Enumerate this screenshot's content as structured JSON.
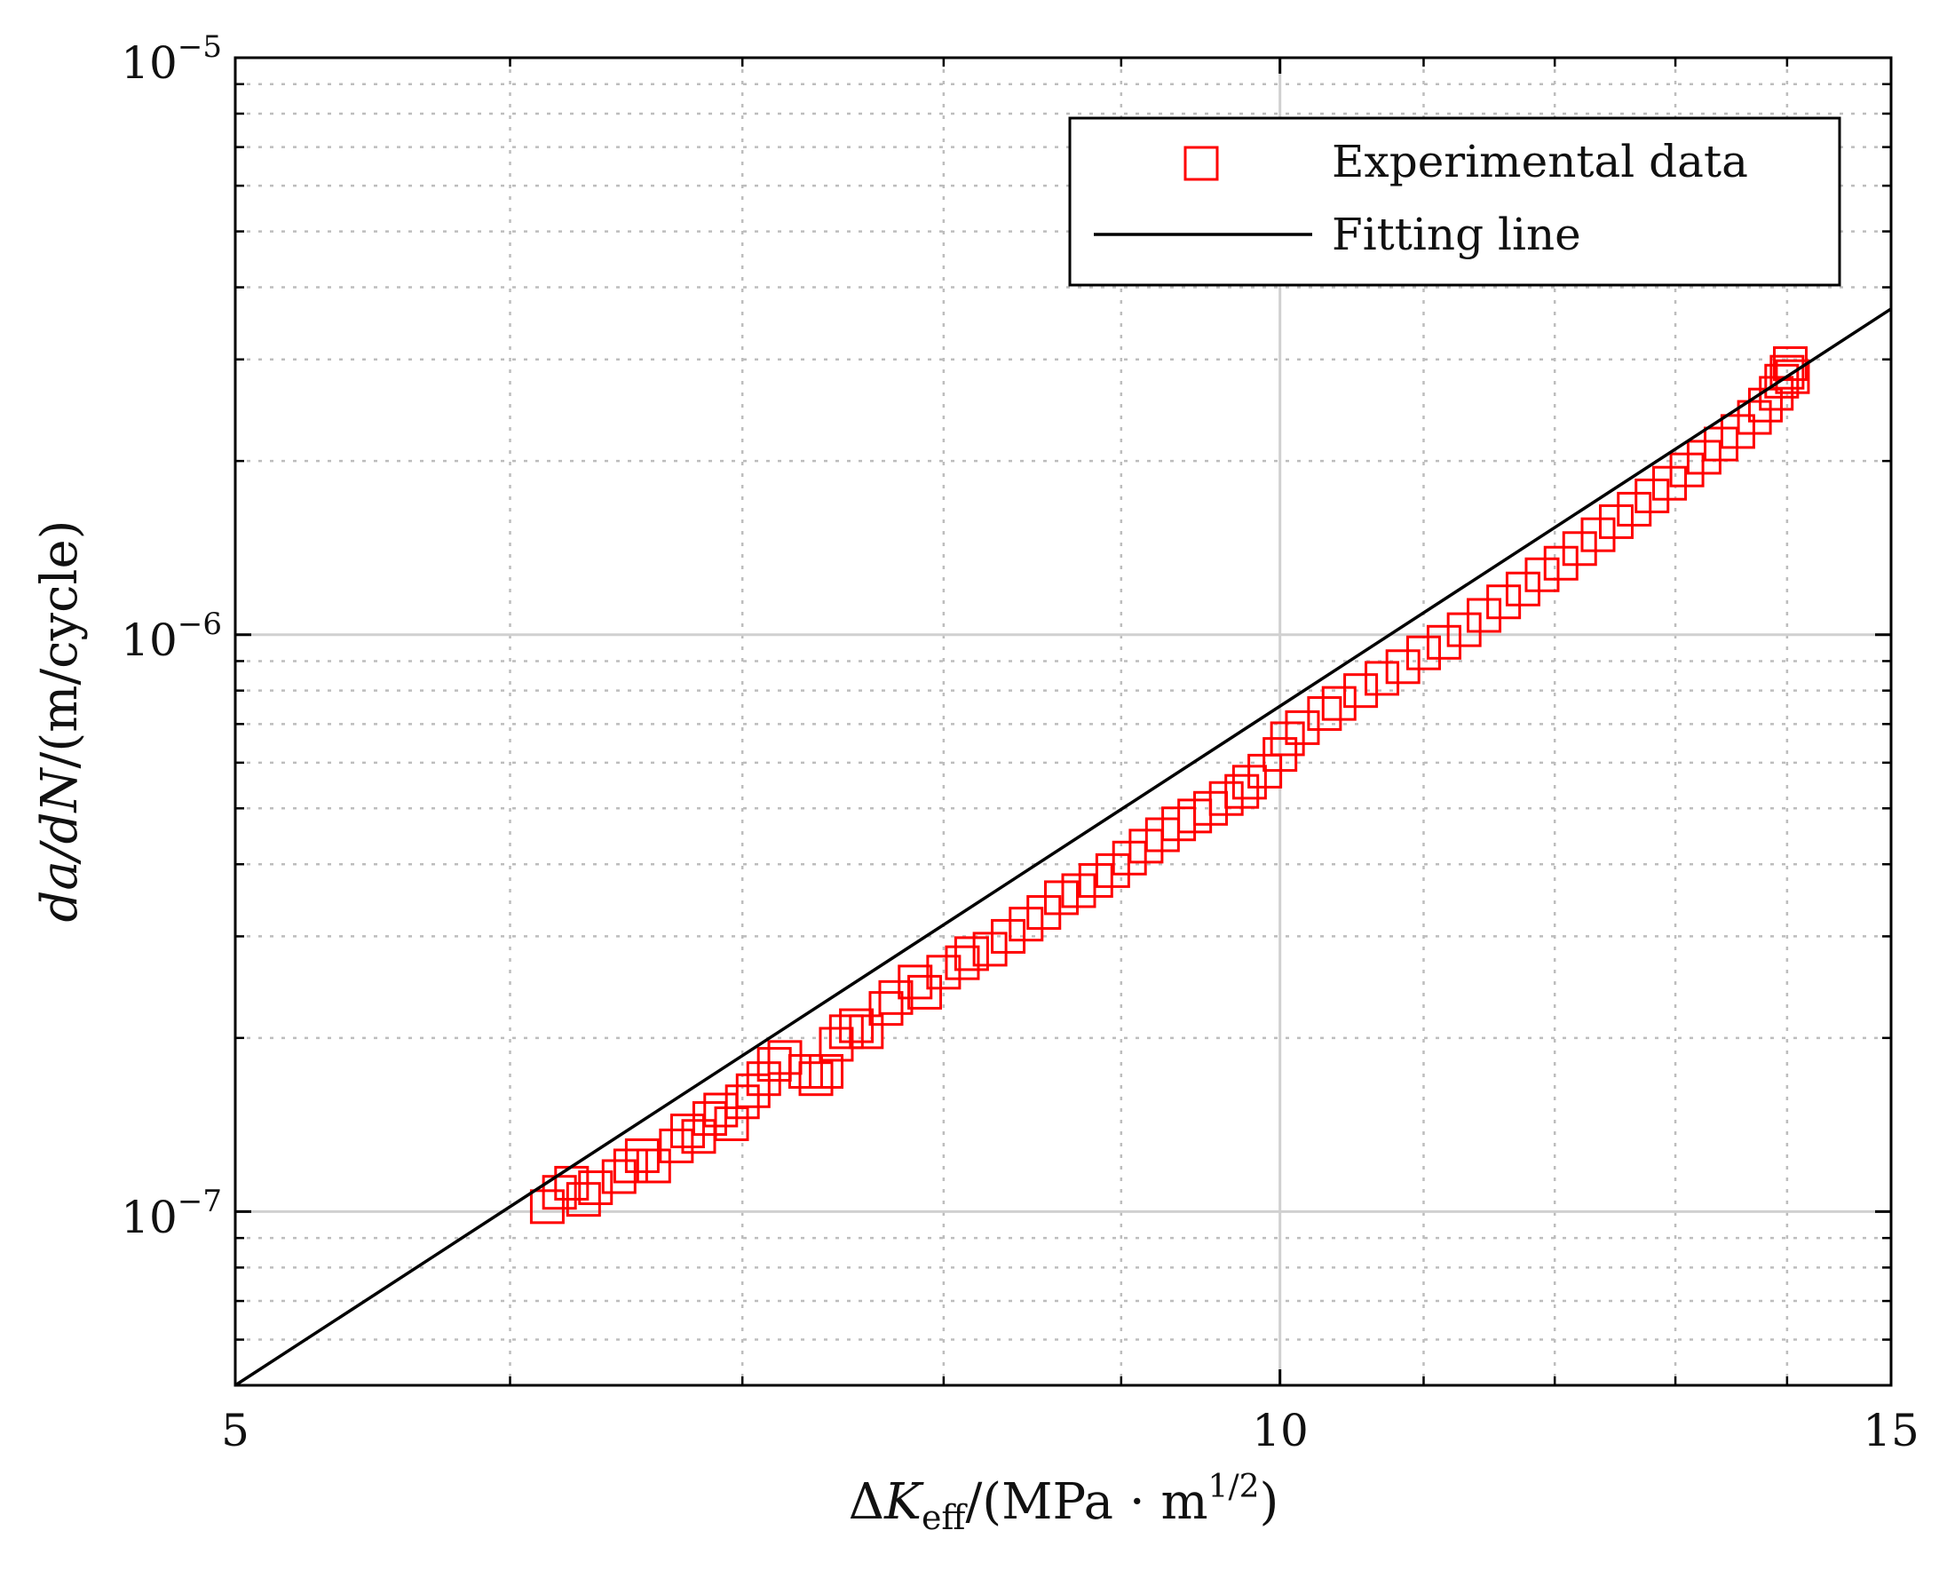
{
  "chart_data": {
    "type": "scatter",
    "scale": {
      "x": "log",
      "y": "log"
    },
    "xlim": [
      5,
      15
    ],
    "ylim": [
      5e-08,
      1e-05
    ],
    "grid": true,
    "xticks": [
      {
        "value": 5,
        "label": "5"
      },
      {
        "value": 10,
        "label": "10"
      },
      {
        "value": 15,
        "label": "15"
      }
    ],
    "yticks": [
      {
        "value": 1e-07,
        "base": "10",
        "exp": "−7"
      },
      {
        "value": 1e-06,
        "base": "10",
        "exp": "−6"
      },
      {
        "value": 1e-05,
        "base": "10",
        "exp": "−5"
      }
    ],
    "xlabel": {
      "delta": "Δ",
      "var": "K",
      "sub": "eff",
      "unit": "/(MPa · m",
      "exp": "1/2",
      "close": ")"
    },
    "ylabel": {
      "var": "da/dN",
      "unit": "/(m/cycle)"
    },
    "legend_position": "top-right",
    "series": [
      {
        "name": "Experimental data",
        "marker": "square",
        "color": "#ff0000",
        "points": [
          [
            6.15,
            1.02e-07
          ],
          [
            6.2,
            1.08e-07
          ],
          [
            6.25,
            1.12e-07
          ],
          [
            6.3,
            1.05e-07
          ],
          [
            6.35,
            1.1e-07
          ],
          [
            6.45,
            1.15e-07
          ],
          [
            6.5,
            1.2e-07
          ],
          [
            6.55,
            1.25e-07
          ],
          [
            6.6,
            1.2e-07
          ],
          [
            6.7,
            1.3e-07
          ],
          [
            6.75,
            1.38e-07
          ],
          [
            6.8,
            1.35e-07
          ],
          [
            6.85,
            1.45e-07
          ],
          [
            6.9,
            1.5e-07
          ],
          [
            6.95,
            1.42e-07
          ],
          [
            7.0,
            1.55e-07
          ],
          [
            7.05,
            1.62e-07
          ],
          [
            7.1,
            1.7e-07
          ],
          [
            7.15,
            1.8e-07
          ],
          [
            7.2,
            1.85e-07
          ],
          [
            7.3,
            1.75e-07
          ],
          [
            7.35,
            1.7e-07
          ],
          [
            7.4,
            1.75e-07
          ],
          [
            7.45,
            1.95e-07
          ],
          [
            7.5,
            2.05e-07
          ],
          [
            7.55,
            2.1e-07
          ],
          [
            7.6,
            2.05e-07
          ],
          [
            7.7,
            2.25e-07
          ],
          [
            7.75,
            2.35e-07
          ],
          [
            7.85,
            2.5e-07
          ],
          [
            7.9,
            2.4e-07
          ],
          [
            8.0,
            2.6e-07
          ],
          [
            8.1,
            2.7e-07
          ],
          [
            8.15,
            2.8e-07
          ],
          [
            8.25,
            2.85e-07
          ],
          [
            8.35,
            3e-07
          ],
          [
            8.45,
            3.15e-07
          ],
          [
            8.55,
            3.3e-07
          ],
          [
            8.65,
            3.5e-07
          ],
          [
            8.75,
            3.6e-07
          ],
          [
            8.85,
            3.75e-07
          ],
          [
            8.95,
            3.9e-07
          ],
          [
            9.05,
            4.1e-07
          ],
          [
            9.15,
            4.3e-07
          ],
          [
            9.25,
            4.5e-07
          ],
          [
            9.35,
            4.7e-07
          ],
          [
            9.45,
            4.85e-07
          ],
          [
            9.55,
            5e-07
          ],
          [
            9.65,
            5.2e-07
          ],
          [
            9.75,
            5.35e-07
          ],
          [
            9.8,
            5.55e-07
          ],
          [
            9.9,
            5.8e-07
          ],
          [
            10.0,
            6.2e-07
          ],
          [
            10.05,
            6.6e-07
          ],
          [
            10.15,
            6.9e-07
          ],
          [
            10.3,
            7.3e-07
          ],
          [
            10.4,
            7.6e-07
          ],
          [
            10.55,
            8e-07
          ],
          [
            10.7,
            8.4e-07
          ],
          [
            10.85,
            8.8e-07
          ],
          [
            11.0,
            9.3e-07
          ],
          [
            11.15,
            9.7e-07
          ],
          [
            11.3,
            1.02e-06
          ],
          [
            11.45,
            1.08e-06
          ],
          [
            11.6,
            1.14e-06
          ],
          [
            11.75,
            1.2e-06
          ],
          [
            11.9,
            1.27e-06
          ],
          [
            12.05,
            1.33e-06
          ],
          [
            12.2,
            1.41e-06
          ],
          [
            12.35,
            1.49e-06
          ],
          [
            12.5,
            1.57e-06
          ],
          [
            12.65,
            1.65e-06
          ],
          [
            12.8,
            1.74e-06
          ],
          [
            12.95,
            1.83e-06
          ],
          [
            13.1,
            1.93e-06
          ],
          [
            13.25,
            2.03e-06
          ],
          [
            13.4,
            2.14e-06
          ],
          [
            13.55,
            2.25e-06
          ],
          [
            13.7,
            2.38e-06
          ],
          [
            13.8,
            2.5e-06
          ],
          [
            13.9,
            2.62e-06
          ],
          [
            13.95,
            2.75e-06
          ],
          [
            14.0,
            2.85e-06
          ],
          [
            14.03,
            2.95e-06
          ],
          [
            14.05,
            2.8e-06
          ]
        ]
      },
      {
        "name": "Fitting line",
        "type": "line",
        "color": "#000000",
        "points": [
          [
            5,
            5e-08
          ],
          [
            15,
            3.67e-06
          ]
        ]
      }
    ]
  }
}
